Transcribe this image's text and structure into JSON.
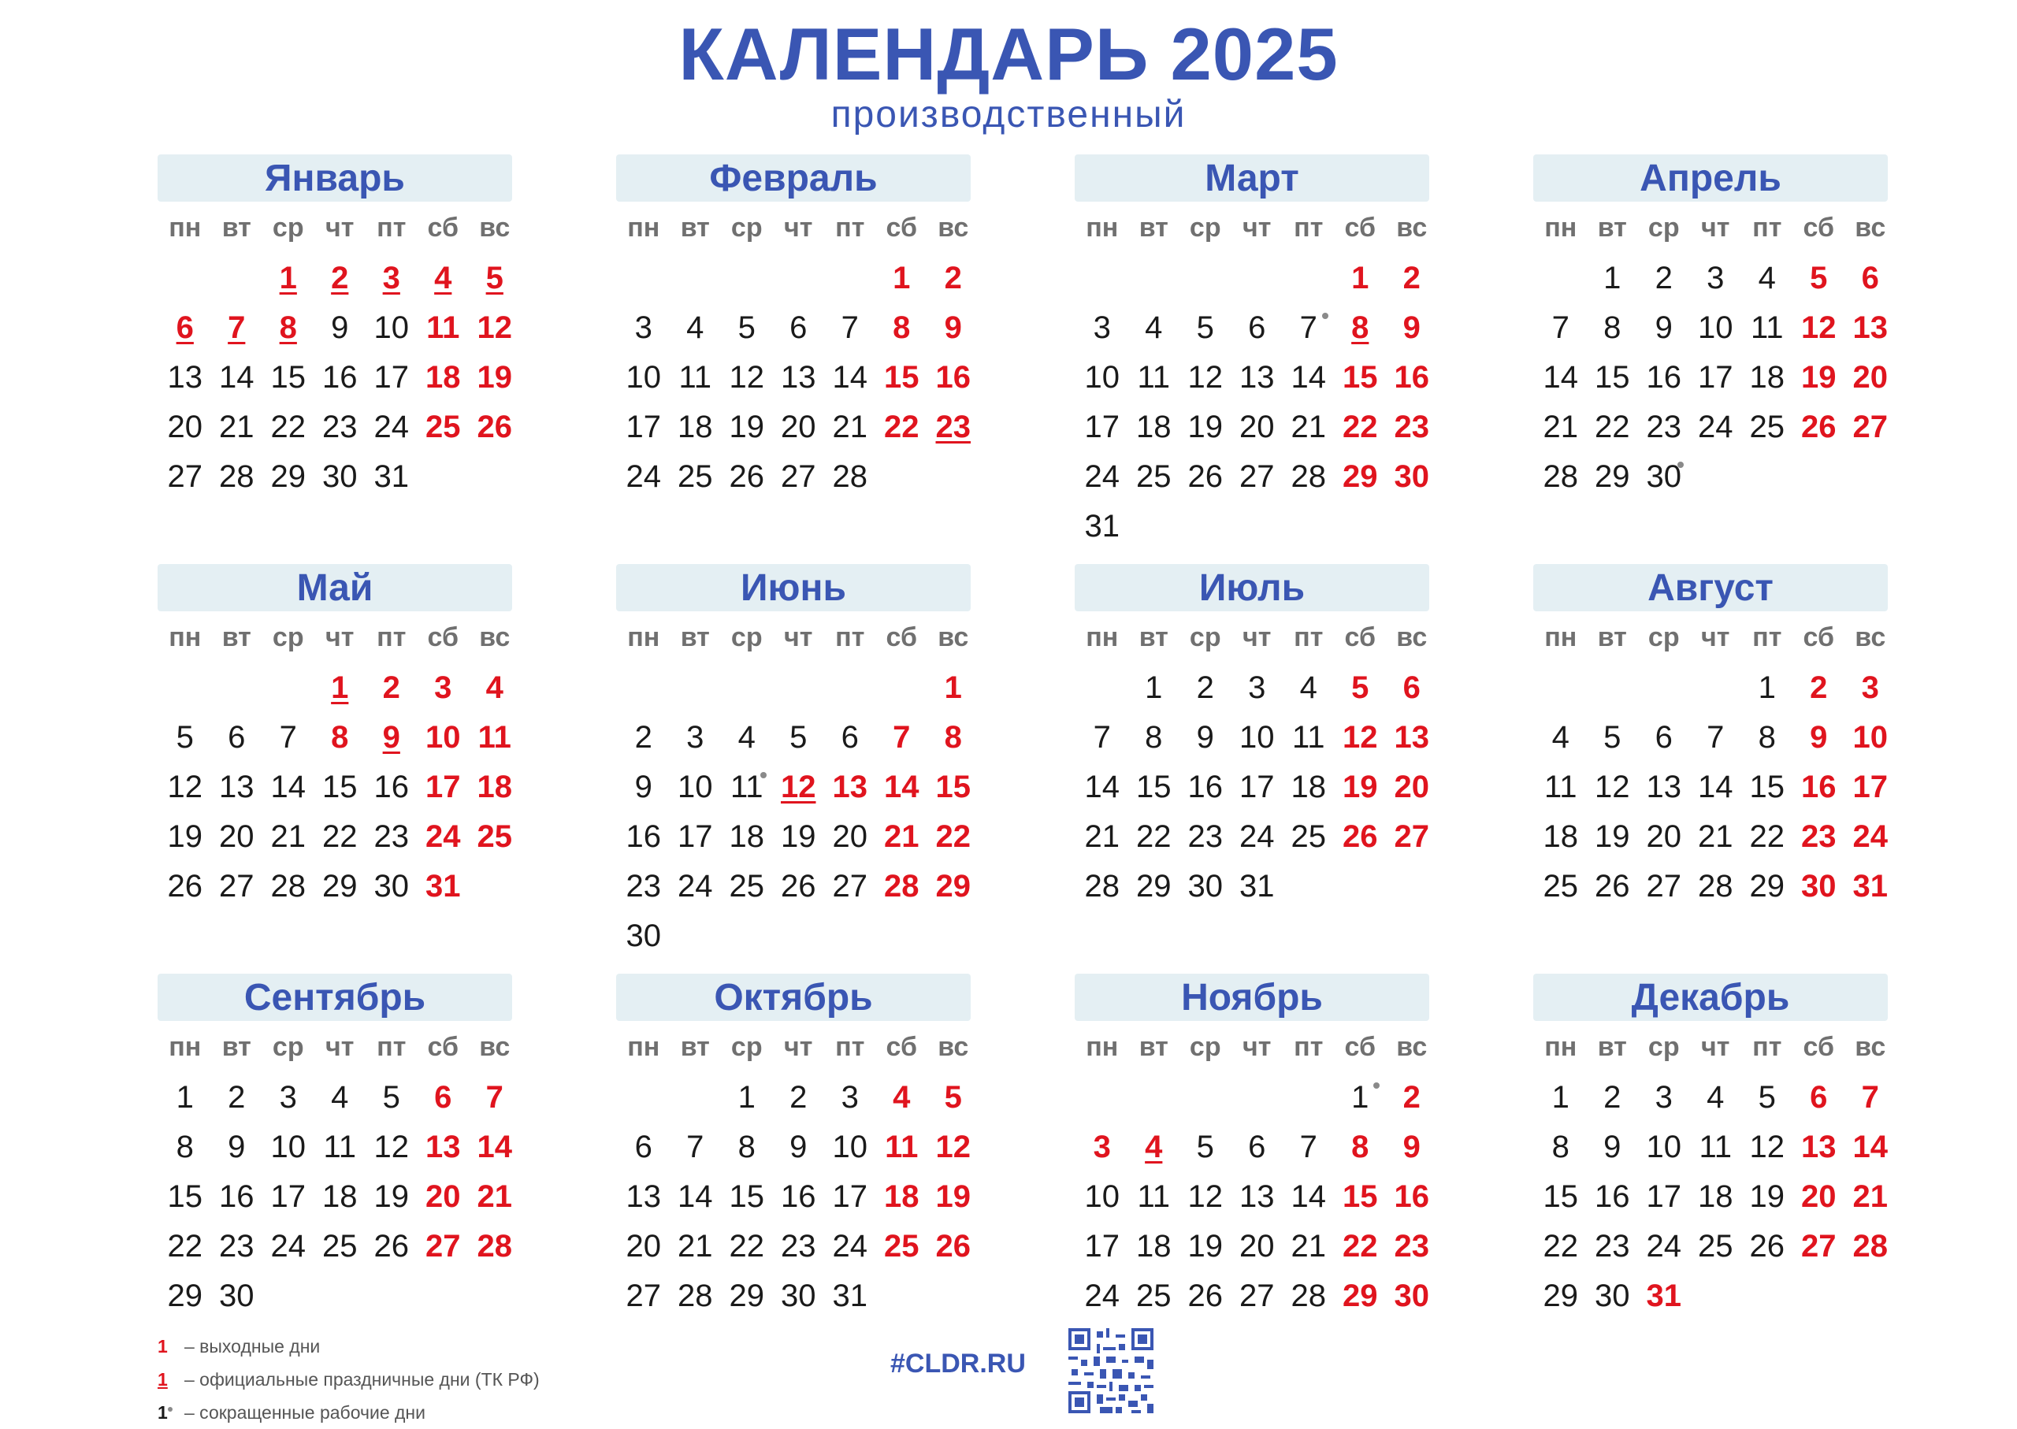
{
  "title": "КАЛЕНДАРЬ 2025",
  "subtitle": "производственный",
  "weekdays": [
    "пн",
    "вт",
    "ср",
    "чт",
    "пт",
    "сб",
    "вс"
  ],
  "months": [
    {
      "name": "Январь",
      "offset": 2,
      "days": 31,
      "holidays": [
        1,
        2,
        3,
        4,
        5,
        6,
        7,
        8
      ],
      "weekends": [
        11,
        12,
        18,
        19,
        25,
        26
      ],
      "short": []
    },
    {
      "name": "Февраль",
      "offset": 5,
      "days": 28,
      "holidays": [
        23
      ],
      "weekends": [
        1,
        2,
        8,
        9,
        15,
        16,
        22
      ],
      "short": []
    },
    {
      "name": "Март",
      "offset": 5,
      "days": 31,
      "holidays": [
        8
      ],
      "weekends": [
        1,
        2,
        9,
        15,
        16,
        22,
        23,
        29,
        30
      ],
      "short": [
        7
      ]
    },
    {
      "name": "Апрель",
      "offset": 1,
      "days": 30,
      "holidays": [],
      "weekends": [
        5,
        6,
        12,
        13,
        19,
        20,
        26,
        27
      ],
      "short": [
        30
      ]
    },
    {
      "name": "Май",
      "offset": 3,
      "days": 31,
      "holidays": [
        1,
        9
      ],
      "weekends": [
        2,
        3,
        4,
        8,
        10,
        11,
        17,
        18,
        24,
        25,
        31
      ],
      "short": []
    },
    {
      "name": "Июнь",
      "offset": 6,
      "days": 30,
      "holidays": [
        12
      ],
      "weekends": [
        1,
        7,
        8,
        13,
        14,
        15,
        21,
        22,
        28,
        29
      ],
      "short": [
        11
      ]
    },
    {
      "name": "Июль",
      "offset": 1,
      "days": 31,
      "holidays": [],
      "weekends": [
        5,
        6,
        12,
        13,
        19,
        20,
        26,
        27
      ],
      "short": []
    },
    {
      "name": "Август",
      "offset": 4,
      "days": 31,
      "holidays": [],
      "weekends": [
        2,
        3,
        9,
        10,
        16,
        17,
        23,
        24,
        30,
        31
      ],
      "short": []
    },
    {
      "name": "Сентябрь",
      "offset": 0,
      "days": 30,
      "holidays": [],
      "weekends": [
        6,
        7,
        13,
        14,
        20,
        21,
        27,
        28
      ],
      "short": []
    },
    {
      "name": "Октябрь",
      "offset": 2,
      "days": 31,
      "holidays": [],
      "weekends": [
        4,
        5,
        11,
        12,
        18,
        19,
        25,
        26
      ],
      "short": []
    },
    {
      "name": "Ноябрь",
      "offset": 5,
      "days": 30,
      "holidays": [
        4
      ],
      "weekends": [
        2,
        3,
        8,
        9,
        15,
        16,
        22,
        23,
        29,
        30
      ],
      "short": [
        1
      ]
    },
    {
      "name": "Декабрь",
      "offset": 0,
      "days": 31,
      "holidays": [],
      "weekends": [
        6,
        7,
        13,
        14,
        20,
        21,
        27,
        28,
        31
      ],
      "short": []
    }
  ],
  "legend": [
    {
      "num": "1",
      "style": "red",
      "text": "– выходные дни"
    },
    {
      "num": "1",
      "style": "redu",
      "text": "– официальные праздничные дни (ТК РФ)"
    },
    {
      "num": "1",
      "style": "blk",
      "dot": true,
      "text": "– сокращенные рабочие дни"
    }
  ],
  "site": "#CLDR.RU"
}
